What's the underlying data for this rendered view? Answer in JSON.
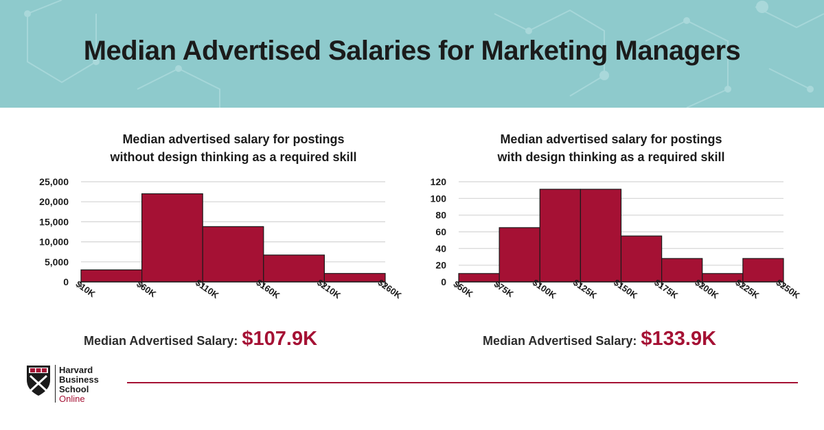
{
  "header": {
    "title": "Median Advertised Salaries for Marketing Managers"
  },
  "colors": {
    "bar": "#a51134",
    "banner": "#8ecacc",
    "accent": "#a51134"
  },
  "chart_data": [
    {
      "type": "bar",
      "title_lines": [
        "Median advertised salary for postings",
        "without design thinking as a required skill"
      ],
      "x_ticks": [
        "$10K",
        "$60K",
        "$110K",
        "$160K",
        "$210K",
        "$260K"
      ],
      "bins": [
        [
          10,
          60
        ],
        [
          60,
          110
        ],
        [
          110,
          160
        ],
        [
          160,
          210
        ],
        [
          210,
          260
        ]
      ],
      "values": [
        3000,
        22000,
        13800,
        6700,
        2100
      ],
      "y_ticks": [
        "0",
        "5,000",
        "10,000",
        "15,000",
        "20,000",
        "25,000"
      ],
      "ylim": [
        0,
        25000
      ],
      "grid": true,
      "median_label": "Median Advertised Salary:",
      "median_value": "$107.9K"
    },
    {
      "type": "bar",
      "title_lines": [
        "Median advertised salary for postings",
        "with design thinking as a required skill"
      ],
      "x_ticks": [
        "$50K",
        "$75K",
        "$100K",
        "$125K",
        "$150K",
        "$175K",
        "$200K",
        "$225K",
        "$250K"
      ],
      "bins": [
        [
          50,
          75
        ],
        [
          75,
          100
        ],
        [
          100,
          125
        ],
        [
          125,
          150
        ],
        [
          150,
          175
        ],
        [
          175,
          200
        ],
        [
          200,
          225
        ],
        [
          225,
          250
        ]
      ],
      "values": [
        10,
        65,
        111,
        111,
        55,
        28,
        10,
        28
      ],
      "y_ticks": [
        "0",
        "20",
        "40",
        "60",
        "80",
        "100",
        "120"
      ],
      "ylim": [
        0,
        120
      ],
      "grid": true,
      "median_label": "Median Advertised Salary:",
      "median_value": "$133.9K"
    }
  ],
  "footer": {
    "logo_line1": "Harvard",
    "logo_line2": "Business",
    "logo_line3": "School",
    "logo_line4": "Online"
  }
}
